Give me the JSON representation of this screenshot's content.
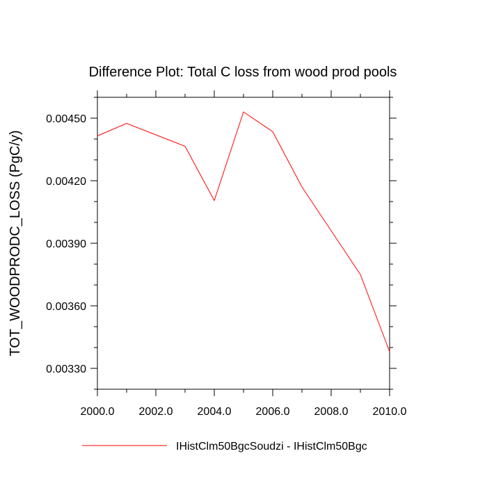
{
  "chart_data": {
    "type": "line",
    "title": "Difference Plot: Total C loss from wood prod pools",
    "xlabel": "",
    "ylabel": "TOT_WOODPRODC_LOSS  (PgC/y)",
    "xlim": [
      2000.0,
      2010.0
    ],
    "ylim": [
      0.0032,
      0.0046
    ],
    "x_ticks": [
      2000.0,
      2002.0,
      2004.0,
      2006.0,
      2008.0,
      2010.0
    ],
    "x_tick_labels": [
      "2000.0",
      "2002.0",
      "2004.0",
      "2006.0",
      "2008.0",
      "2010.0"
    ],
    "x_minor_step": 1.0,
    "y_ticks": [
      0.0033,
      0.0036,
      0.0039,
      0.0042,
      0.0045
    ],
    "y_tick_labels": [
      "0.00330",
      "0.00360",
      "0.00390",
      "0.00420",
      "0.00450"
    ],
    "y_minor_step": 0.0001,
    "grid": false,
    "legend_position": "bottom",
    "series": [
      {
        "name": "IHistClm50BgcSoudzi - IHistClm50Bgc",
        "color": "#ff0000",
        "x": [
          2000,
          2001,
          2002,
          2003,
          2004,
          2005,
          2006,
          2007,
          2008,
          2009,
          2010
        ],
        "y": [
          0.004415,
          0.004475,
          0.00442,
          0.004365,
          0.004105,
          0.00453,
          0.004435,
          0.00417,
          0.00396,
          0.00375,
          0.00338
        ]
      }
    ]
  }
}
